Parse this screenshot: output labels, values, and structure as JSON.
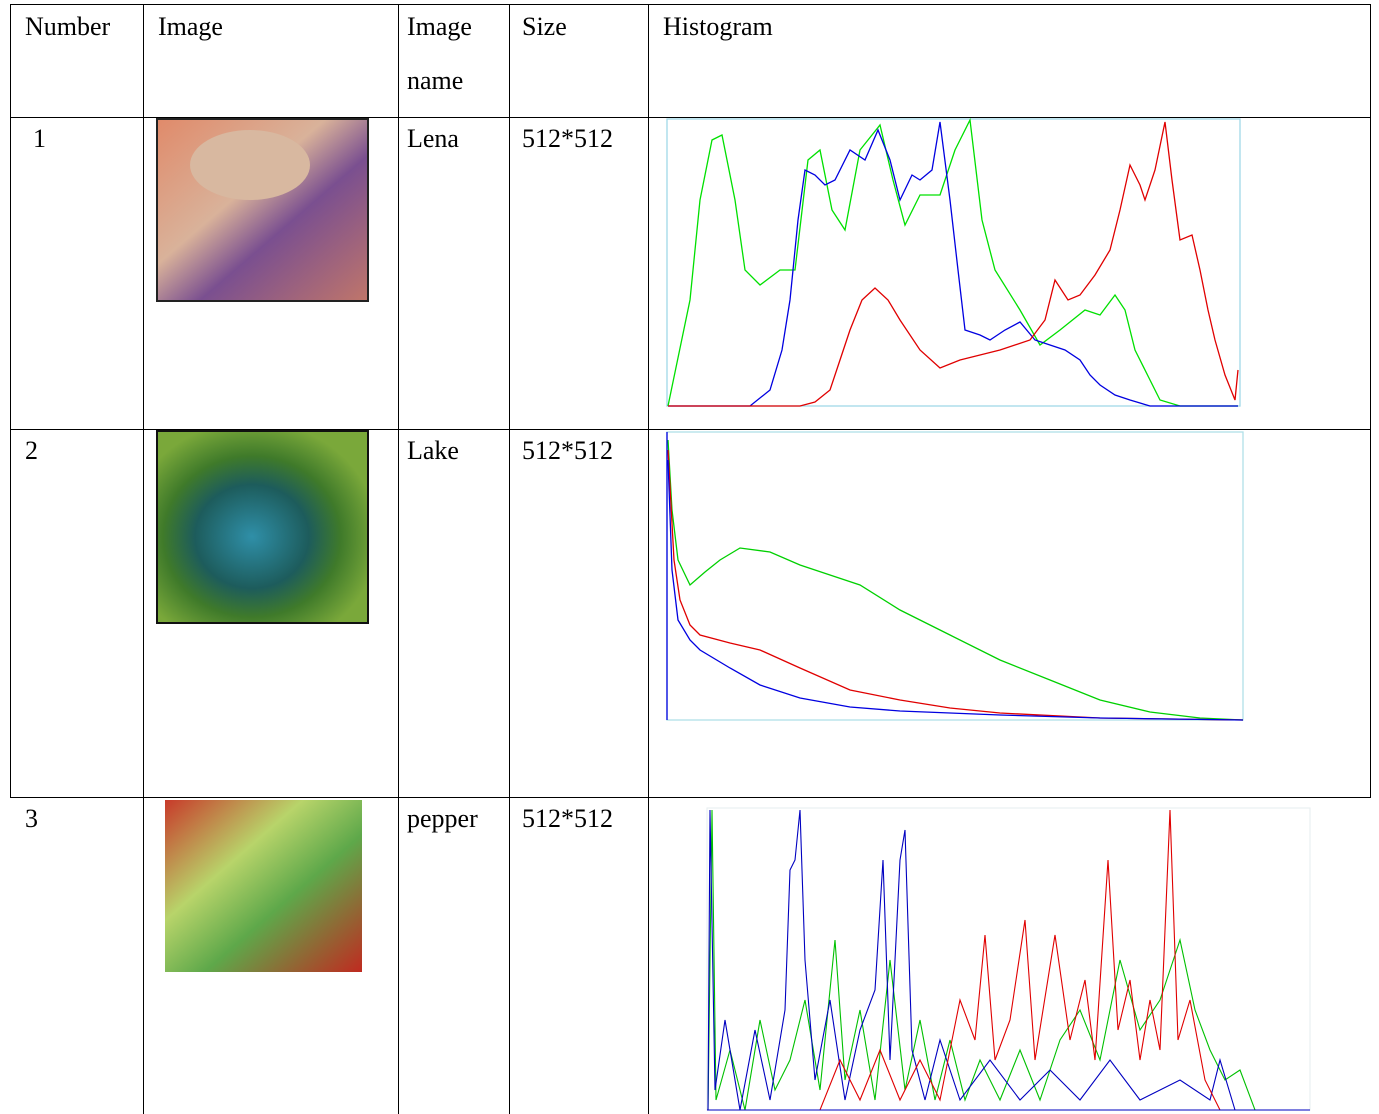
{
  "table": {
    "header": [
      "Number",
      "Image",
      "Image name",
      "Size",
      "Histogram"
    ],
    "rows": [
      [
        "1",
        "Lena",
        "512*512"
      ],
      [
        "2",
        "Lake",
        "512*512"
      ],
      [
        "3",
        "pepper",
        "512*512"
      ]
    ]
  }
}
